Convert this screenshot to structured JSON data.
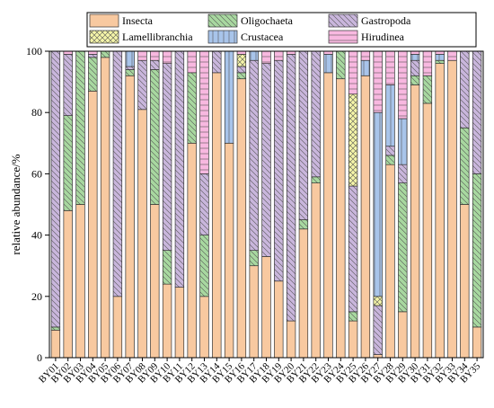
{
  "chart_data": {
    "type": "bar",
    "stacked": true,
    "title": "",
    "xlabel": "",
    "ylabel": "relative abundance/%",
    "ylim": [
      0,
      100
    ],
    "yticks": [
      0,
      20,
      40,
      60,
      80,
      100
    ],
    "grid": false,
    "legend_position": "top",
    "categories": [
      "BY01",
      "BY02",
      "BY03",
      "BY04",
      "BY05",
      "BY06",
      "BY07",
      "BY08",
      "BY09",
      "BY10",
      "BY11",
      "BY12",
      "BY13",
      "BY14",
      "BY15",
      "BY16",
      "BY17",
      "BY18",
      "BY19",
      "BY20",
      "BY21",
      "BY22",
      "BY23",
      "BY24",
      "BY25",
      "BY26",
      "BY27",
      "BY28",
      "BY29",
      "BY30",
      "BY31",
      "BY32",
      "BY33",
      "BY34",
      "BY35"
    ],
    "series": [
      {
        "name": "Insecta",
        "color": "#f8c9a0",
        "pattern": "none",
        "values": [
          9,
          48,
          50,
          87,
          98,
          20,
          92,
          81,
          50,
          24,
          23,
          70,
          20,
          93,
          70,
          91,
          30,
          33,
          25,
          12,
          42,
          57,
          93,
          91,
          12,
          92,
          1,
          63,
          15,
          89,
          83,
          96,
          97,
          50,
          10
        ]
      },
      {
        "name": "Oligochaeta",
        "color": "#a8d8a0",
        "pattern": "diag",
        "values": [
          1,
          31,
          50,
          11,
          2,
          0,
          2,
          0,
          44,
          11,
          0,
          23,
          20,
          0,
          0,
          2,
          5,
          0,
          0,
          0,
          3,
          2,
          0,
          9,
          3,
          0,
          0,
          3,
          42,
          3,
          9,
          1,
          0,
          25,
          50
        ]
      },
      {
        "name": "Gastropoda",
        "color": "#c9b6dc",
        "pattern": "diag",
        "values": [
          90,
          20,
          0,
          1,
          0,
          80,
          1,
          16,
          3,
          61,
          77,
          0,
          20,
          7,
          0,
          2,
          62,
          63,
          72,
          87,
          55,
          41,
          0,
          0,
          41,
          0,
          16,
          3,
          6,
          5,
          0,
          0,
          0,
          25,
          40
        ]
      },
      {
        "name": "Lamellibranchia",
        "color": "#f4f4a8",
        "pattern": "cross",
        "values": [
          0,
          0,
          0,
          0,
          0,
          0,
          0,
          0,
          0,
          0,
          0,
          0,
          0,
          0,
          0,
          4,
          0,
          0,
          0,
          0,
          0,
          0,
          0,
          0,
          30,
          0,
          3,
          0,
          0,
          0,
          0,
          0,
          0,
          0,
          0
        ]
      },
      {
        "name": "Crustacea",
        "color": "#a8c4ea",
        "pattern": "vert",
        "values": [
          0,
          0,
          0,
          0,
          0,
          0,
          5,
          0,
          0,
          0,
          0,
          0,
          0,
          0,
          30,
          0,
          3,
          0,
          0,
          0,
          0,
          0,
          6,
          0,
          0,
          5,
          60,
          20,
          15,
          2,
          0,
          2,
          0,
          0,
          0
        ]
      },
      {
        "name": "Hirudinea",
        "color": "#f8b8e0",
        "pattern": "horiz",
        "values": [
          0,
          1,
          0,
          1,
          0,
          0,
          0,
          3,
          3,
          4,
          0,
          7,
          40,
          0,
          0,
          1,
          0,
          4,
          3,
          1,
          0,
          0,
          1,
          0,
          14,
          3,
          20,
          11,
          22,
          1,
          8,
          1,
          3,
          0,
          0
        ]
      }
    ]
  }
}
